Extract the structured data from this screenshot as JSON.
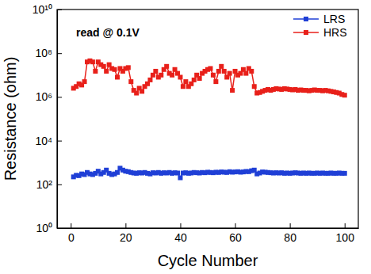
{
  "chart_data": {
    "type": "line",
    "x_label": "Cycle Number",
    "y_label": "Resistance (ohm)",
    "annotations": [
      "read @ 0.1V"
    ],
    "log": "y",
    "grid": false,
    "legend": "upper right",
    "marker": "square",
    "xlim": [
      -5,
      105
    ],
    "xticks": [
      0,
      20,
      40,
      60,
      80,
      100
    ],
    "ylim": [
      1,
      10000000000
    ],
    "yticks": [
      {
        "value": 1,
        "label": "10⁰"
      },
      {
        "value": 100,
        "label": "10²"
      },
      {
        "value": 10000,
        "label": "10⁴"
      },
      {
        "value": 1000000,
        "label": "10⁶"
      },
      {
        "value": 100000000,
        "label": "10⁸"
      },
      {
        "value": 10000000000,
        "label": "10¹⁰"
      }
    ],
    "x": [
      1,
      2,
      3,
      4,
      5,
      6,
      7,
      8,
      9,
      10,
      11,
      12,
      13,
      14,
      15,
      16,
      17,
      18,
      19,
      20,
      21,
      22,
      23,
      24,
      25,
      26,
      27,
      28,
      29,
      30,
      31,
      32,
      33,
      34,
      35,
      36,
      37,
      38,
      39,
      40,
      41,
      42,
      43,
      44,
      45,
      46,
      47,
      48,
      49,
      50,
      51,
      52,
      53,
      54,
      55,
      56,
      57,
      58,
      59,
      60,
      61,
      62,
      63,
      64,
      65,
      66,
      67,
      68,
      69,
      70,
      71,
      72,
      73,
      74,
      75,
      76,
      77,
      78,
      79,
      80,
      81,
      82,
      83,
      84,
      85,
      86,
      87,
      88,
      89,
      90,
      91,
      92,
      93,
      94,
      95,
      96,
      97,
      98,
      99,
      100
    ],
    "series": [
      {
        "name": "LRS",
        "color": "#1f3fd6",
        "values": [
          220,
          260,
          250,
          300,
          280,
          350,
          300,
          280,
          320,
          400,
          300,
          350,
          450,
          320,
          280,
          300,
          350,
          550,
          450,
          400,
          380,
          350,
          330,
          320,
          340,
          330,
          350,
          320,
          300,
          340,
          330,
          350,
          320,
          340,
          330,
          350,
          320,
          340,
          330,
          200,
          330,
          340,
          320,
          330,
          350,
          340,
          330,
          350,
          340,
          360,
          350,
          340,
          360,
          350,
          370,
          360,
          350,
          380,
          360,
          370,
          380,
          360,
          370,
          390,
          380,
          420,
          450,
          300,
          330,
          370,
          360,
          350,
          340,
          330,
          340,
          330,
          340,
          320,
          330,
          320,
          330,
          340,
          330,
          320,
          330,
          320,
          330,
          320,
          320,
          330,
          320,
          330,
          320,
          320,
          330,
          320,
          320,
          330,
          320,
          320
        ]
      },
      {
        "name": "HRS",
        "color": "#e8201a",
        "values": [
          2500000.0,
          3000000.0,
          4000000.0,
          3500000.0,
          5000000.0,
          40000000.0,
          45000000.0,
          40000000.0,
          15000000.0,
          40000000.0,
          30000000.0,
          25000000.0,
          15000000.0,
          30000000.0,
          20000000.0,
          18000000.0,
          8000000.0,
          20000000.0,
          15000000.0,
          20000000.0,
          22000000.0,
          5000000.0,
          2000000.0,
          1500000.0,
          2500000.0,
          1800000.0,
          3000000.0,
          4000000.0,
          6000000.0,
          10000000.0,
          15000000.0,
          8000000.0,
          10000000.0,
          18000000.0,
          25000000.0,
          12000000.0,
          10000000.0,
          18000000.0,
          12000000.0,
          8000000.0,
          3000000.0,
          5000000.0,
          3000000.0,
          4000000.0,
          6000000.0,
          10000000.0,
          7000000.0,
          12000000.0,
          15000000.0,
          18000000.0,
          20000000.0,
          10000000.0,
          5000000.0,
          15000000.0,
          25000000.0,
          15000000.0,
          8000000.0,
          12000000.0,
          2000000.0,
          15000000.0,
          10000000.0,
          12000000.0,
          18000000.0,
          12000000.0,
          20000000.0,
          15000000.0,
          3000000.0,
          1500000.0,
          1600000.0,
          1800000.0,
          2000000.0,
          2200000.0,
          2000000.0,
          2200000.0,
          2400000.0,
          2300000.0,
          2200000.0,
          2400000.0,
          2300000.0,
          2200000.0,
          2100000.0,
          2200000.0,
          2000000.0,
          2100000.0,
          2000000.0,
          2000000.0,
          1900000.0,
          2000000.0,
          2100000.0,
          2000000.0,
          2000000.0,
          1900000.0,
          2000000.0,
          1900000.0,
          1800000.0,
          1700000.0,
          1600000.0,
          1500000.0,
          1300000.0,
          1200000.0
        ]
      }
    ]
  }
}
